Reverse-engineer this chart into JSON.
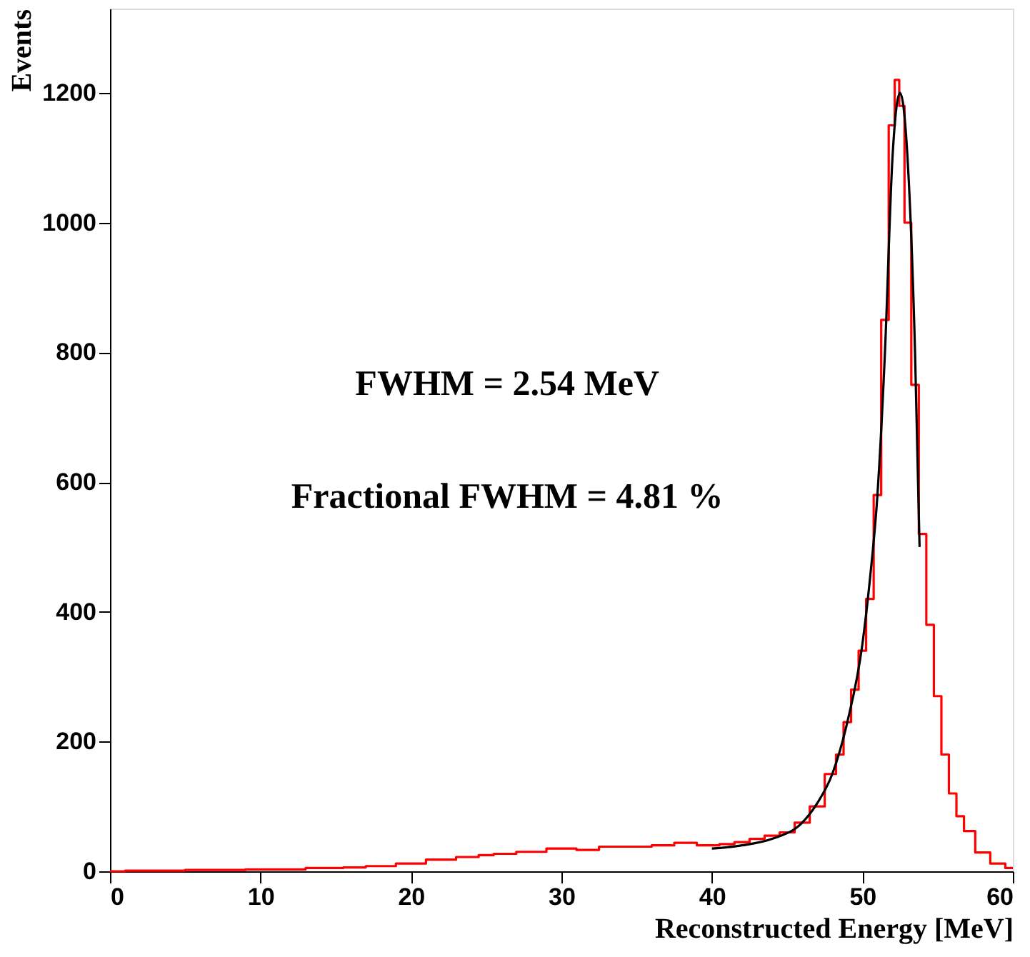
{
  "chart_data": {
    "type": "step",
    "xlabel": "Reconstructed Energy [MeV]",
    "ylabel": "Events",
    "xlim": [
      0,
      60
    ],
    "ylim": [
      0,
      1330
    ],
    "xticks": [
      0,
      10,
      20,
      30,
      40,
      50,
      60
    ],
    "yticks": [
      0,
      200,
      400,
      600,
      800,
      1000,
      1200
    ],
    "grid": false,
    "legend": false,
    "annotations": [
      "FWHM = 2.54 MeV",
      "Fractional FWHM = 4.81 %"
    ],
    "series": [
      {
        "color": "#ff0000",
        "x": [
          0,
          2,
          4,
          6,
          8,
          10,
          12,
          14,
          15,
          16,
          18,
          20,
          22,
          24,
          25,
          26,
          28,
          30,
          32,
          33,
          35,
          37,
          38,
          40,
          41,
          42,
          43,
          44,
          45,
          46,
          47,
          48,
          48.5,
          49,
          49.5,
          50,
          50.5,
          51,
          51.5,
          52,
          52.3,
          52.6,
          53,
          53.5,
          54,
          54.5,
          55,
          55.5,
          56,
          56.5,
          57,
          58,
          59,
          60
        ],
        "values": [
          0,
          1,
          1,
          2,
          2,
          3,
          3,
          5,
          5,
          6,
          8,
          12,
          18,
          22,
          25,
          27,
          30,
          35,
          33,
          38,
          38,
          40,
          44,
          40,
          42,
          45,
          50,
          55,
          60,
          75,
          100,
          150,
          180,
          230,
          280,
          340,
          420,
          580,
          850,
          1150,
          1220,
          1180,
          1000,
          750,
          520,
          380,
          270,
          180,
          120,
          85,
          62,
          29,
          12,
          5
        ]
      },
      {
        "type": "line",
        "color": "#000000",
        "x": [
          40,
          42,
          44,
          46,
          47,
          48,
          49,
          50,
          50.5,
          51,
          51.5,
          52,
          52.5,
          53,
          53.5,
          53.8
        ],
        "values": [
          35,
          40,
          50,
          75,
          105,
          150,
          230,
          350,
          450,
          580,
          800,
          1100,
          1200,
          1100,
          800,
          500
        ]
      }
    ]
  }
}
